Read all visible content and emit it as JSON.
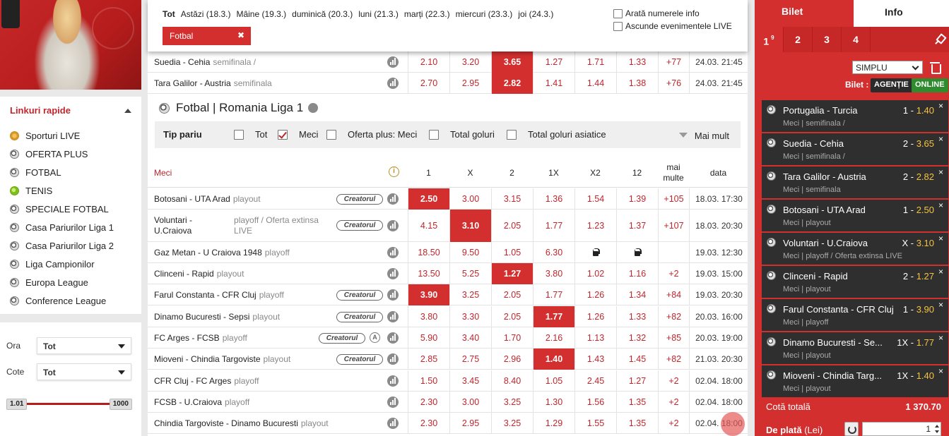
{
  "sidebar": {
    "quick_title": "Linkuri rapide",
    "items": [
      {
        "label": "Sporturi LIVE",
        "icon": "gold-ball-icon"
      },
      {
        "label": "OFERTA PLUS",
        "icon": "football-icon"
      },
      {
        "label": "FOTBAL",
        "icon": "football-icon"
      },
      {
        "label": "TENIS",
        "icon": "tennis-ball-icon"
      },
      {
        "label": "SPECIALE FOTBAL",
        "icon": "football-icon"
      },
      {
        "label": "Casa Pariurilor Liga 1",
        "icon": "football-icon"
      },
      {
        "label": "Casa Pariurilor Liga 2",
        "icon": "football-icon"
      },
      {
        "label": "Liga Campionilor",
        "icon": "football-icon"
      },
      {
        "label": "Europa League",
        "icon": "football-icon"
      },
      {
        "label": "Conference League",
        "icon": "football-icon"
      }
    ],
    "filters": {
      "ora_label": "Ora",
      "ora_value": "Tot",
      "cote_label": "Cote",
      "cote_value": "Tot",
      "range_min": "1.01",
      "range_max": "1000"
    }
  },
  "datebar": {
    "days": [
      "Tot",
      "Astăzi (18.3.)",
      "Mâine (19.3.)",
      "duminică (20.3.)",
      "luni (21.3.)",
      "marți (22.3.)",
      "miercuri (23.3.)",
      "joi (24.3.)"
    ],
    "chip": "Fotbal",
    "chip_close": "✖",
    "opt1": "Arată numerele info",
    "opt2": "Ascunde evenimentele LIVE"
  },
  "top_rows": [
    {
      "name": "Suedia - Cehia",
      "sub": "semifinala /",
      "odds": [
        "2.10",
        "3.20",
        "3.65",
        "1.27",
        "1.71",
        "1.33"
      ],
      "sel": 2,
      "more": "+77",
      "date": "24.03. 21:45"
    },
    {
      "name": "Tara Galilor - Austria",
      "sub": "semifinala",
      "odds": [
        "2.70",
        "2.95",
        "2.82",
        "1.41",
        "1.44",
        "1.38"
      ],
      "sel": 2,
      "more": "+76",
      "date": "24.03. 21:45"
    }
  ],
  "section": {
    "title": "Fotbal | Romania Liga 1",
    "tip_label": "Tip pariu",
    "tip_opts": [
      "Tot",
      "Meci",
      "Oferta plus: Meci",
      "Total goluri",
      "Total goluri asiatice"
    ],
    "more": "Mai mult"
  },
  "header": {
    "meci": "Meci",
    "cols": [
      "1",
      "X",
      "2",
      "1X",
      "X2",
      "12"
    ],
    "more": "mai multe",
    "date": "data"
  },
  "creator_label": "Creatorul",
  "a_label": "A",
  "rows": [
    {
      "name": "Botosani - UTA Arad",
      "sub": "playout",
      "creator": true,
      "odds": [
        "2.50",
        "3.00",
        "3.15",
        "1.36",
        "1.54",
        "1.39"
      ],
      "sel": 0,
      "more": "+105",
      "date": "18.03. 17:30"
    },
    {
      "name": "Voluntari - U.Craiova",
      "sub": "playoff / Oferta extinsa LIVE",
      "creator": true,
      "two": true,
      "odds": [
        "4.15",
        "3.10",
        "2.05",
        "1.77",
        "1.23",
        "1.37"
      ],
      "sel": 1,
      "more": "+107",
      "date": "18.03. 20:30"
    },
    {
      "name": "Gaz Metan - U Craiova 1948",
      "sub": "playoff",
      "creator": false,
      "odds": [
        "18.50",
        "9.50",
        "1.05",
        "6.30",
        "",
        ""
      ],
      "lock": [
        4,
        5
      ],
      "sel": -1,
      "more": "",
      "date": "19.03. 12:30"
    },
    {
      "name": "Clinceni - Rapid",
      "sub": "playout",
      "creator": false,
      "odds": [
        "13.50",
        "5.25",
        "1.27",
        "3.80",
        "1.02",
        "1.16"
      ],
      "sel": 2,
      "more": "+2",
      "date": "19.03. 15:00"
    },
    {
      "name": "Farul Constanta - CFR Cluj",
      "sub": "playoff",
      "creator": true,
      "odds": [
        "3.90",
        "3.25",
        "2.05",
        "1.77",
        "1.26",
        "1.34"
      ],
      "sel": 0,
      "more": "+84",
      "date": "19.03. 20:30"
    },
    {
      "name": "Dinamo Bucuresti - Sepsi",
      "sub": "playout",
      "creator": true,
      "odds": [
        "3.80",
        "3.30",
        "2.05",
        "1.77",
        "1.26",
        "1.33"
      ],
      "sel": 3,
      "more": "+82",
      "date": "20.03. 16:00"
    },
    {
      "name": "FC Arges - FCSB",
      "sub": "playoff",
      "creator": true,
      "acircle": true,
      "odds": [
        "5.90",
        "3.40",
        "1.70",
        "2.16",
        "1.13",
        "1.32"
      ],
      "sel": -1,
      "more": "+85",
      "date": "20.03. 19:00"
    },
    {
      "name": "Mioveni - Chindia Targoviste",
      "sub": "playout",
      "creator": true,
      "odds": [
        "2.85",
        "2.75",
        "2.96",
        "1.40",
        "1.43",
        "1.45"
      ],
      "sel": 3,
      "more": "+82",
      "date": "21.03. 20:30"
    },
    {
      "name": "CFR Cluj - FC Arges",
      "sub": "playoff",
      "creator": false,
      "odds": [
        "1.50",
        "3.45",
        "8.40",
        "1.05",
        "2.45",
        "1.27"
      ],
      "sel": -1,
      "more": "+2",
      "date": "02.04. 18:00"
    },
    {
      "name": "FCSB - U.Craiova",
      "sub": "playoff",
      "creator": false,
      "odds": [
        "2.30",
        "3.00",
        "3.25",
        "1.30",
        "1.56",
        "1.35"
      ],
      "sel": -1,
      "more": "+2",
      "date": "02.04. 18:00"
    },
    {
      "name": "Chindia Targoviste - Dinamo Bucuresti",
      "sub": "playout",
      "creator": false,
      "odds": [
        "2.30",
        "2.95",
        "3.25",
        "1.29",
        "1.55",
        "1.35"
      ],
      "sel": -1,
      "more": "+2",
      "date": "02.04. 18:00"
    }
  ],
  "betslip": {
    "tab_bilet": "Bilet",
    "tab_info": "Info",
    "nums": [
      "1",
      "2",
      "3",
      "4"
    ],
    "badge": "9",
    "type": "SIMPLU",
    "bilet_label": "Bilet :",
    "agentie": "AGENȚIE",
    "online": "ONLINE",
    "close": "×",
    "bets": [
      {
        "event": "Portugalia - Turcia",
        "pick": "1 -",
        "odd": "1.40",
        "meta": "Meci | semifinala /"
      },
      {
        "event": "Suedia - Cehia",
        "pick": "2 -",
        "odd": "3.65",
        "meta": "Meci | semifinala /"
      },
      {
        "event": "Tara Galilor - Austria",
        "pick": "2 -",
        "odd": "2.82",
        "meta": "Meci | semifinala"
      },
      {
        "event": "Botosani - UTA Arad",
        "pick": "1 -",
        "odd": "2.50",
        "meta": "Meci | playout"
      },
      {
        "event": "Voluntari - U.Craiova",
        "pick": "X -",
        "odd": "3.10",
        "meta": "Meci | playoff / Oferta extinsa LIVE"
      },
      {
        "event": "Clinceni - Rapid",
        "pick": "2 -",
        "odd": "1.27",
        "meta": "Meci | playout"
      },
      {
        "event": "Farul Constanta - CFR Cluj",
        "pick": "1 -",
        "odd": "3.90",
        "meta": "Meci | playoff"
      },
      {
        "event": "Dinamo Bucuresti - Se...",
        "pick": "1X -",
        "odd": "1.77",
        "meta": "Meci | playout"
      },
      {
        "event": "Mioveni - Chindia Targ...",
        "pick": "1X -",
        "odd": "1.40",
        "meta": "Meci | playout"
      }
    ],
    "total_label": "Cotă totală",
    "total_value": "1 370.70",
    "plata_label": "De plată",
    "plata_unit": "(Lei)",
    "stake": "1"
  }
}
